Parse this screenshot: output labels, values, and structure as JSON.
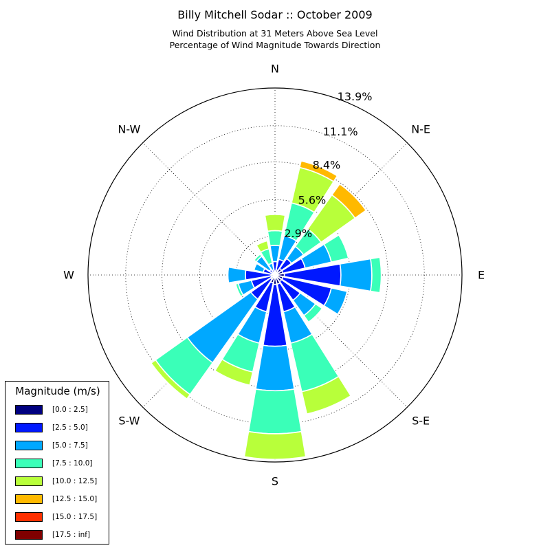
{
  "chart_data": {
    "type": "windrose",
    "title": "Billy Mitchell Sodar :: October 2009",
    "subtitle_lines": [
      "Wind Distribution at 31 Meters Above Sea Level",
      "Percentage of Wind Magnitude Towards Direction"
    ],
    "directions": [
      "N",
      "N-E",
      "E",
      "S-E",
      "S",
      "S-W",
      "W",
      "N-W"
    ],
    "radial_ticks": [
      "2.9%",
      "5.6%",
      "8.4%",
      "11.1%",
      "13.9%"
    ],
    "radial_max": 13.9,
    "bins": [
      {
        "label": "[0.0 : 2.5]",
        "color": "#000080"
      },
      {
        "label": "[2.5 : 5.0]",
        "color": "#0018ff"
      },
      {
        "label": "[5.0 : 7.5]",
        "color": "#00a8ff"
      },
      {
        "label": "[7.5 : 10.0]",
        "color": "#3affb8"
      },
      {
        "label": "[10.0 : 12.5]",
        "color": "#b8ff3a"
      },
      {
        "label": "[12.5 : 15.0]",
        "color": "#ffb900"
      },
      {
        "label": "[15.0 : 17.5]",
        "color": "#ff3000"
      },
      {
        "label": "[17.5 : inf]",
        "color": "#800000"
      }
    ],
    "sector_angles_deg": [
      0,
      22.5,
      45,
      67.5,
      90,
      112.5,
      135,
      157.5,
      180,
      202.5,
      225,
      247.5,
      270,
      292.5,
      315,
      337.5
    ],
    "cumulative_percent": [
      [
        0.3,
        1.0,
        2.2,
        3.3,
        4.5,
        4.5,
        4.5,
        4.5
      ],
      [
        0.4,
        1.2,
        3.0,
        5.5,
        8.2,
        8.7,
        8.7,
        8.7
      ],
      [
        0.6,
        1.5,
        2.6,
        4.2,
        7.3,
        8.3,
        8.3,
        8.3
      ],
      [
        0.6,
        2.3,
        4.3,
        5.6,
        5.6,
        5.6,
        5.6,
        5.6
      ],
      [
        0.7,
        4.9,
        7.2,
        7.9,
        7.9,
        7.9,
        7.9,
        7.9
      ],
      [
        0.6,
        4.3,
        5.5,
        5.5,
        5.5,
        5.5,
        5.5,
        5.5
      ],
      [
        0.6,
        2.3,
        3.7,
        4.3,
        4.3,
        4.3,
        4.3,
        4.3
      ],
      [
        0.7,
        2.8,
        5.2,
        8.9,
        10.6,
        10.6,
        10.6,
        10.6
      ],
      [
        0.7,
        5.3,
        8.6,
        11.8,
        13.7,
        13.7,
        13.7,
        13.7
      ],
      [
        0.6,
        2.8,
        5.2,
        7.4,
        8.4,
        8.4,
        8.4,
        8.4
      ],
      [
        0.4,
        2.2,
        8.0,
        10.9,
        11.3,
        11.3,
        11.3,
        11.3
      ],
      [
        0.3,
        1.8,
        2.8,
        3.0,
        3.0,
        3.0,
        3.0,
        3.0
      ],
      [
        0.3,
        2.2,
        3.5,
        3.5,
        3.5,
        3.5,
        3.5,
        3.5
      ],
      [
        0.2,
        0.9,
        1.6,
        1.6,
        1.6,
        1.6,
        1.6,
        1.6
      ],
      [
        0.2,
        0.5,
        1.7,
        1.9,
        1.9,
        1.9,
        1.9,
        1.9
      ],
      [
        0.1,
        0.4,
        0.9,
        2.0,
        2.6,
        2.6,
        2.6,
        2.6
      ]
    ]
  },
  "legend": {
    "title": "Magnitude (m/s)"
  }
}
